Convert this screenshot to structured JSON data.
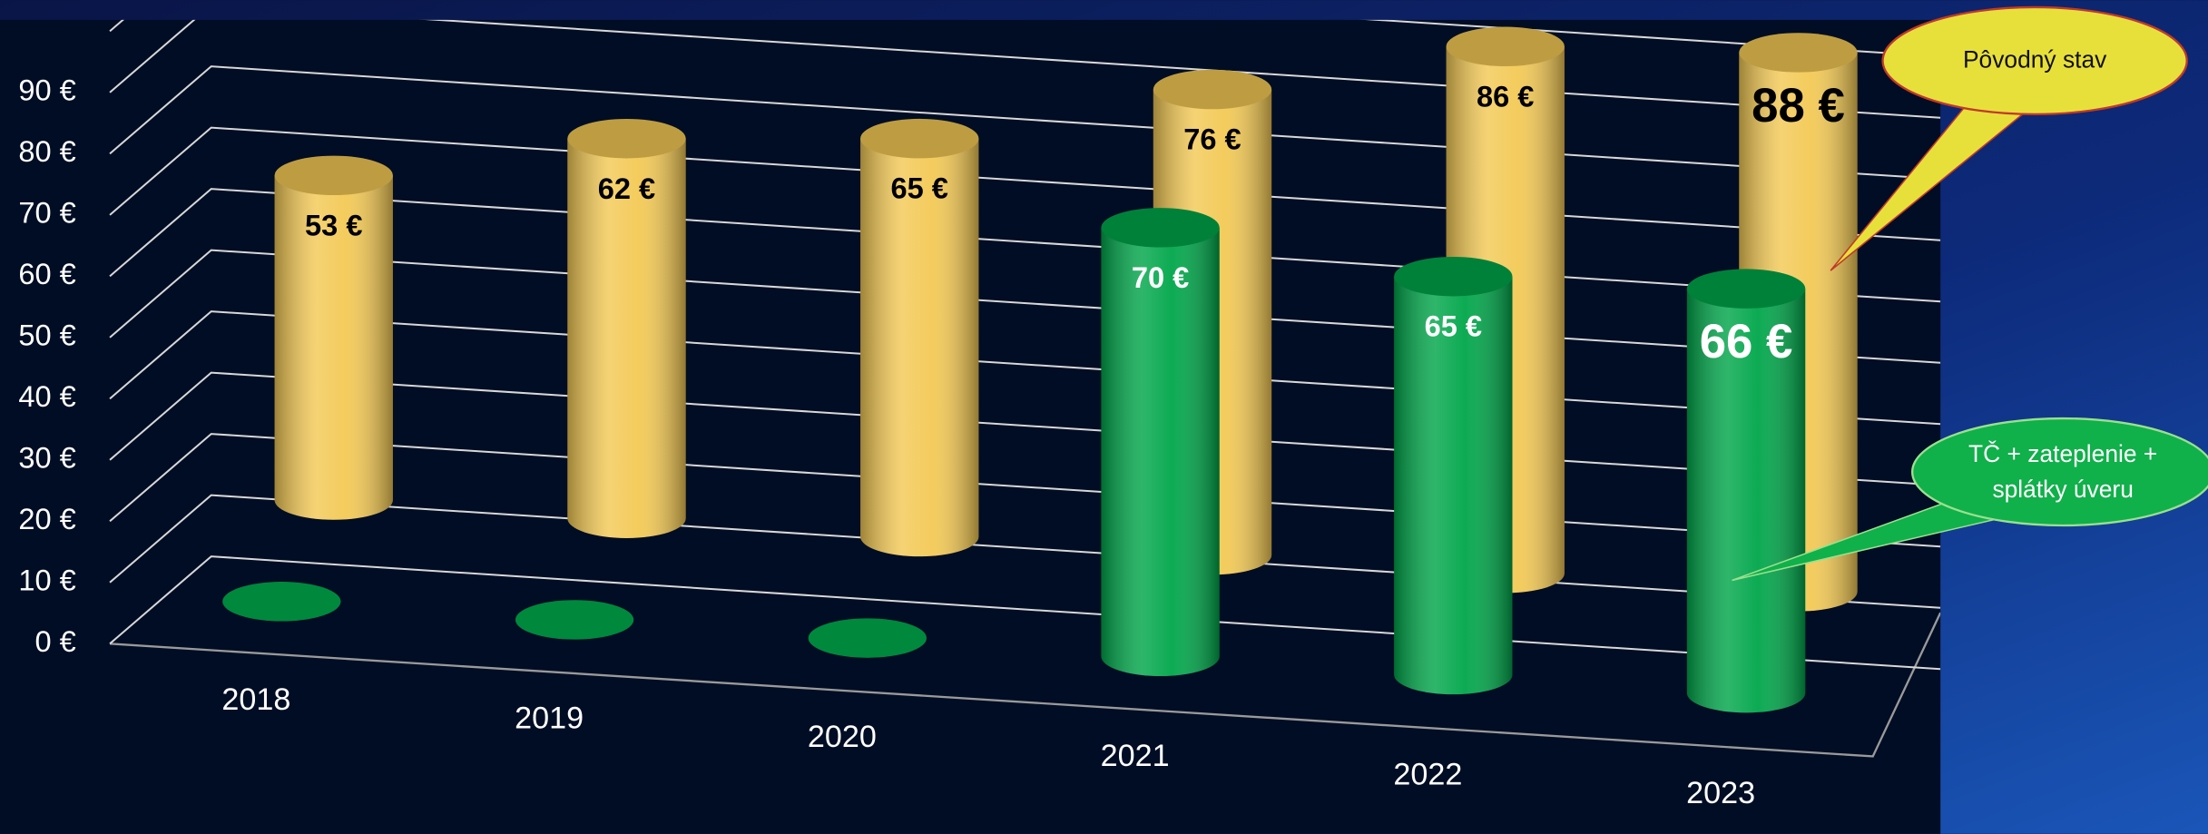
{
  "chart_data": {
    "type": "cylinder3d",
    "categories": [
      "2018",
      "2019",
      "2020",
      "2021",
      "2022",
      "2023"
    ],
    "series": [
      {
        "name": "Pôvodný stav",
        "color": "#f3c955",
        "values": [
          53,
          62,
          65,
          76,
          86,
          88
        ],
        "value_labels": [
          "53 €",
          "62 €",
          "65 €",
          "76 €",
          "86 €",
          "88 €"
        ]
      },
      {
        "name": "TČ + zateplenie + splátky úveru",
        "color": "#00a64a",
        "values": [
          0,
          0,
          0,
          70,
          65,
          66
        ],
        "value_labels": [
          null,
          null,
          null,
          "70 €",
          "65 €",
          "66 €"
        ]
      }
    ],
    "ylim": [
      0,
      100
    ],
    "yticks": [
      {
        "value": 0,
        "label": "0 €"
      },
      {
        "value": 10,
        "label": "10 €"
      },
      {
        "value": 20,
        "label": "20 €"
      },
      {
        "value": 30,
        "label": "30 €"
      },
      {
        "value": 40,
        "label": "40 €"
      },
      {
        "value": 50,
        "label": "50 €"
      },
      {
        "value": 60,
        "label": "60 €"
      },
      {
        "value": 70,
        "label": "70 €"
      },
      {
        "value": 80,
        "label": "80 €"
      },
      {
        "value": 90,
        "label": "90 €"
      }
    ],
    "grid": true
  }
}
